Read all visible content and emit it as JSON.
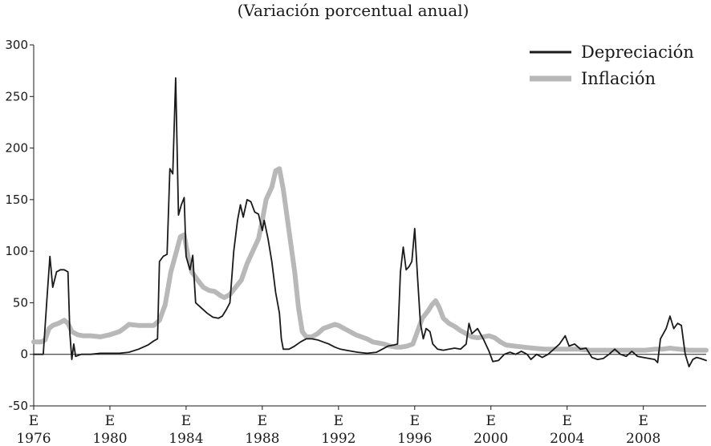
{
  "chart_data": {
    "type": "line",
    "title": "(Variación porcentual anual)",
    "xlabel": "",
    "ylabel": "",
    "xlim": [
      1976.0,
      2011.3
    ],
    "ylim": [
      -50,
      300
    ],
    "yticks": [
      -50,
      0,
      50,
      100,
      150,
      200,
      250,
      300
    ],
    "xticks": [
      {
        "x": 1976.0,
        "top": "E",
        "bottom": "1976"
      },
      {
        "x": 1980.0,
        "top": "E",
        "bottom": "1980"
      },
      {
        "x": 1984.0,
        "top": "E",
        "bottom": "1984"
      },
      {
        "x": 1988.0,
        "top": "E",
        "bottom": "1988"
      },
      {
        "x": 1992.0,
        "top": "E",
        "bottom": "1992"
      },
      {
        "x": 1996.0,
        "top": "E",
        "bottom": "1996"
      },
      {
        "x": 2000.0,
        "top": "E",
        "bottom": "2000"
      },
      {
        "x": 2004.0,
        "top": "E",
        "bottom": "2004"
      },
      {
        "x": 2008.0,
        "top": "E",
        "bottom": "2008"
      }
    ],
    "legend_position": "top-right",
    "series": [
      {
        "name": "Inflación",
        "color": "#b8b8b8",
        "points": [
          [
            1976.0,
            12
          ],
          [
            1976.4,
            12
          ],
          [
            1976.6,
            14
          ],
          [
            1976.8,
            25
          ],
          [
            1977.0,
            28
          ],
          [
            1977.3,
            30
          ],
          [
            1977.6,
            33
          ],
          [
            1977.8,
            30
          ],
          [
            1978.0,
            22
          ],
          [
            1978.3,
            19
          ],
          [
            1978.6,
            18
          ],
          [
            1979.0,
            18
          ],
          [
            1979.5,
            17
          ],
          [
            1980.0,
            19
          ],
          [
            1980.5,
            22
          ],
          [
            1980.8,
            26
          ],
          [
            1981.0,
            29
          ],
          [
            1981.5,
            28
          ],
          [
            1982.0,
            28
          ],
          [
            1982.3,
            28
          ],
          [
            1982.6,
            33
          ],
          [
            1982.9,
            48
          ],
          [
            1983.2,
            80
          ],
          [
            1983.5,
            100
          ],
          [
            1983.7,
            114
          ],
          [
            1983.9,
            116
          ],
          [
            1984.1,
            95
          ],
          [
            1984.3,
            80
          ],
          [
            1984.6,
            72
          ],
          [
            1984.9,
            65
          ],
          [
            1985.2,
            62
          ],
          [
            1985.5,
            61
          ],
          [
            1985.8,
            57
          ],
          [
            1986.0,
            55
          ],
          [
            1986.3,
            58
          ],
          [
            1986.6,
            65
          ],
          [
            1986.9,
            72
          ],
          [
            1987.2,
            88
          ],
          [
            1987.5,
            100
          ],
          [
            1987.8,
            112
          ],
          [
            1988.0,
            130
          ],
          [
            1988.2,
            150
          ],
          [
            1988.5,
            162
          ],
          [
            1988.7,
            178
          ],
          [
            1988.9,
            180
          ],
          [
            1989.1,
            160
          ],
          [
            1989.4,
            120
          ],
          [
            1989.7,
            80
          ],
          [
            1989.9,
            45
          ],
          [
            1990.1,
            22
          ],
          [
            1990.3,
            17
          ],
          [
            1990.6,
            17
          ],
          [
            1990.9,
            20
          ],
          [
            1991.2,
            25
          ],
          [
            1991.5,
            27
          ],
          [
            1991.8,
            29
          ],
          [
            1992.0,
            28
          ],
          [
            1992.3,
            25
          ],
          [
            1992.6,
            22
          ],
          [
            1992.9,
            19
          ],
          [
            1993.2,
            17
          ],
          [
            1993.5,
            15
          ],
          [
            1993.8,
            12
          ],
          [
            1994.1,
            11
          ],
          [
            1994.4,
            10
          ],
          [
            1994.7,
            8
          ],
          [
            1995.0,
            7
          ],
          [
            1995.3,
            7
          ],
          [
            1995.6,
            8
          ],
          [
            1995.9,
            10
          ],
          [
            1996.1,
            20
          ],
          [
            1996.4,
            35
          ],
          [
            1996.7,
            42
          ],
          [
            1996.9,
            48
          ],
          [
            1997.1,
            52
          ],
          [
            1997.3,
            45
          ],
          [
            1997.5,
            35
          ],
          [
            1997.8,
            30
          ],
          [
            1998.1,
            27
          ],
          [
            1998.4,
            23
          ],
          [
            1998.7,
            20
          ],
          [
            1999.0,
            17
          ],
          [
            1999.3,
            16
          ],
          [
            1999.6,
            17
          ],
          [
            1999.9,
            18
          ],
          [
            2000.2,
            16
          ],
          [
            2000.5,
            12
          ],
          [
            2000.8,
            9
          ],
          [
            2001.2,
            8
          ],
          [
            2001.7,
            7
          ],
          [
            2002.2,
            6
          ],
          [
            2002.8,
            5
          ],
          [
            2003.5,
            5
          ],
          [
            2004.0,
            5
          ],
          [
            2004.6,
            5
          ],
          [
            2005.2,
            4
          ],
          [
            2005.8,
            4
          ],
          [
            2006.4,
            4
          ],
          [
            2007.0,
            4
          ],
          [
            2007.6,
            4
          ],
          [
            2008.1,
            4
          ],
          [
            2008.6,
            5
          ],
          [
            2009.0,
            5
          ],
          [
            2009.4,
            6
          ],
          [
            2009.9,
            5
          ],
          [
            2010.4,
            4
          ],
          [
            2010.9,
            4
          ],
          [
            2011.3,
            4
          ]
        ]
      },
      {
        "name": "Depreciación",
        "color": "#1a1a1a",
        "points": [
          [
            1976.0,
            0
          ],
          [
            1976.5,
            0
          ],
          [
            1976.7,
            55
          ],
          [
            1976.85,
            95
          ],
          [
            1977.0,
            65
          ],
          [
            1977.2,
            80
          ],
          [
            1977.4,
            82
          ],
          [
            1977.6,
            82
          ],
          [
            1977.8,
            80
          ],
          [
            1977.9,
            20
          ],
          [
            1978.0,
            -5
          ],
          [
            1978.1,
            10
          ],
          [
            1978.2,
            -2
          ],
          [
            1978.5,
            0
          ],
          [
            1979.0,
            0
          ],
          [
            1979.5,
            1
          ],
          [
            1980.0,
            1
          ],
          [
            1980.5,
            1
          ],
          [
            1981.0,
            2
          ],
          [
            1981.5,
            5
          ],
          [
            1982.0,
            9
          ],
          [
            1982.3,
            13
          ],
          [
            1982.5,
            15
          ],
          [
            1982.6,
            90
          ],
          [
            1982.8,
            95
          ],
          [
            1983.0,
            97
          ],
          [
            1983.15,
            180
          ],
          [
            1983.3,
            175
          ],
          [
            1983.45,
            268
          ],
          [
            1983.6,
            135
          ],
          [
            1983.75,
            145
          ],
          [
            1983.9,
            152
          ],
          [
            1984.0,
            95
          ],
          [
            1984.2,
            82
          ],
          [
            1984.35,
            96
          ],
          [
            1984.5,
            50
          ],
          [
            1984.8,
            45
          ],
          [
            1985.1,
            40
          ],
          [
            1985.4,
            36
          ],
          [
            1985.7,
            35
          ],
          [
            1985.9,
            37
          ],
          [
            1986.1,
            43
          ],
          [
            1986.3,
            50
          ],
          [
            1986.5,
            100
          ],
          [
            1986.7,
            130
          ],
          [
            1986.85,
            145
          ],
          [
            1987.0,
            133
          ],
          [
            1987.2,
            150
          ],
          [
            1987.4,
            148
          ],
          [
            1987.6,
            138
          ],
          [
            1987.8,
            136
          ],
          [
            1988.0,
            120
          ],
          [
            1988.1,
            130
          ],
          [
            1988.3,
            112
          ],
          [
            1988.5,
            90
          ],
          [
            1988.7,
            60
          ],
          [
            1988.9,
            40
          ],
          [
            1989.0,
            15
          ],
          [
            1989.1,
            5
          ],
          [
            1989.4,
            5
          ],
          [
            1989.7,
            8
          ],
          [
            1990.0,
            12
          ],
          [
            1990.3,
            15
          ],
          [
            1990.6,
            15
          ],
          [
            1990.9,
            14
          ],
          [
            1991.2,
            12
          ],
          [
            1991.5,
            10
          ],
          [
            1991.8,
            7
          ],
          [
            1992.1,
            5
          ],
          [
            1992.4,
            4
          ],
          [
            1992.7,
            3
          ],
          [
            1993.0,
            2
          ],
          [
            1993.5,
            1
          ],
          [
            1994.0,
            2
          ],
          [
            1994.3,
            5
          ],
          [
            1994.6,
            8
          ],
          [
            1994.9,
            9
          ],
          [
            1995.1,
            10
          ],
          [
            1995.25,
            80
          ],
          [
            1995.4,
            104
          ],
          [
            1995.55,
            82
          ],
          [
            1995.7,
            85
          ],
          [
            1995.85,
            90
          ],
          [
            1996.0,
            122
          ],
          [
            1996.15,
            75
          ],
          [
            1996.3,
            30
          ],
          [
            1996.45,
            15
          ],
          [
            1996.6,
            25
          ],
          [
            1996.8,
            22
          ],
          [
            1996.95,
            10
          ],
          [
            1997.2,
            5
          ],
          [
            1997.5,
            4
          ],
          [
            1997.8,
            5
          ],
          [
            1998.1,
            6
          ],
          [
            1998.4,
            5
          ],
          [
            1998.7,
            10
          ],
          [
            1998.85,
            30
          ],
          [
            1999.0,
            20
          ],
          [
            1999.3,
            25
          ],
          [
            1999.6,
            15
          ],
          [
            1999.9,
            3
          ],
          [
            2000.1,
            -7
          ],
          [
            2000.4,
            -6
          ],
          [
            2000.7,
            0
          ],
          [
            2001.0,
            2
          ],
          [
            2001.3,
            0
          ],
          [
            2001.6,
            3
          ],
          [
            2001.9,
            0
          ],
          [
            2002.1,
            -5
          ],
          [
            2002.4,
            0
          ],
          [
            2002.7,
            -3
          ],
          [
            2003.0,
            0
          ],
          [
            2003.3,
            5
          ],
          [
            2003.6,
            10
          ],
          [
            2003.9,
            18
          ],
          [
            2004.1,
            8
          ],
          [
            2004.4,
            10
          ],
          [
            2004.7,
            5
          ],
          [
            2005.0,
            6
          ],
          [
            2005.3,
            -3
          ],
          [
            2005.6,
            -5
          ],
          [
            2005.9,
            -4
          ],
          [
            2006.2,
            0
          ],
          [
            2006.5,
            5
          ],
          [
            2006.8,
            0
          ],
          [
            2007.1,
            -2
          ],
          [
            2007.4,
            3
          ],
          [
            2007.7,
            -2
          ],
          [
            2008.0,
            -3
          ],
          [
            2008.3,
            -4
          ],
          [
            2008.6,
            -5
          ],
          [
            2008.75,
            -8
          ],
          [
            2008.9,
            15
          ],
          [
            2009.2,
            25
          ],
          [
            2009.4,
            37
          ],
          [
            2009.6,
            25
          ],
          [
            2009.8,
            30
          ],
          [
            2010.0,
            28
          ],
          [
            2010.2,
            0
          ],
          [
            2010.4,
            -12
          ],
          [
            2010.6,
            -5
          ],
          [
            2010.8,
            -3
          ],
          [
            2011.0,
            -4
          ],
          [
            2011.3,
            -6
          ]
        ]
      }
    ]
  }
}
